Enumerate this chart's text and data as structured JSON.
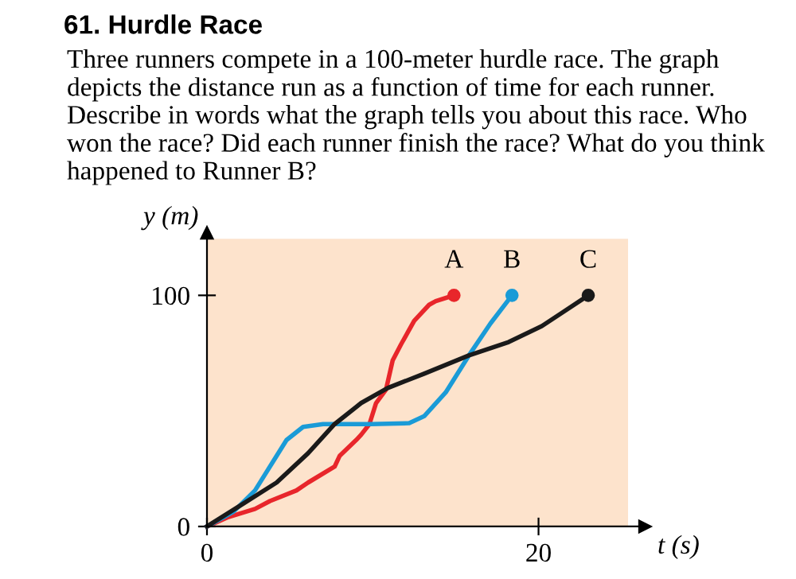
{
  "chart_data": {
    "type": "line",
    "title": "61. Hurdle Race",
    "subtitle": "Three runners compete in a 100-meter hurdle race. The graph depicts the distance run as a function of time for each runner. Describe in words what the graph tells you about this race. Who won the race? Did each runner finish the race? What do you think happened to Runner B?",
    "xlabel": "t (s)",
    "ylabel": "y (m)",
    "series": [
      {
        "name": "A",
        "color": "#e8262b",
        "x": [
          0,
          1.3,
          2.9,
          3.8,
          5.4,
          6.1,
          7.7,
          8,
          9,
          9.3,
          9.8,
          10.2,
          10.8,
          11.2,
          11.7,
          12.5,
          13.4,
          13.8,
          14.9
        ],
        "values": [
          0,
          4.1,
          7.6,
          11,
          15.6,
          19,
          25.9,
          30.5,
          37.4,
          39.7,
          44.3,
          53.4,
          59.2,
          71.8,
          78.7,
          89,
          95.9,
          97.5,
          100
        ]
      },
      {
        "name": "B",
        "color": "#1a9bd7",
        "x": [
          0,
          1.6,
          2.9,
          4.2,
          4.8,
          5.8,
          7,
          9.9,
          12.2,
          13.1,
          14.4,
          15.8,
          17.1,
          18.4
        ],
        "values": [
          0,
          6.4,
          15.6,
          30.5,
          37.4,
          43.1,
          44.3,
          44.3,
          44.7,
          47.7,
          58,
          74,
          87.8,
          100
        ]
      },
      {
        "name": "C",
        "color": "#1a1a1a",
        "x": [
          0,
          2.2,
          4.2,
          6.1,
          7.7,
          9.3,
          10.9,
          13.1,
          15.8,
          18.2,
          20.2,
          21.4,
          23
        ],
        "values": [
          0,
          9.9,
          19,
          31.7,
          44.3,
          53.4,
          59.9,
          66.1,
          74,
          79.8,
          86.7,
          92.4,
          100
        ]
      }
    ],
    "xlim": [
      0,
      25.4
    ],
    "ylim": [
      0,
      124.5
    ],
    "xticks": [
      0,
      20
    ],
    "yticks": [
      0,
      100
    ],
    "grid": false,
    "legend": false,
    "marker": "none",
    "line_style": "solid"
  }
}
